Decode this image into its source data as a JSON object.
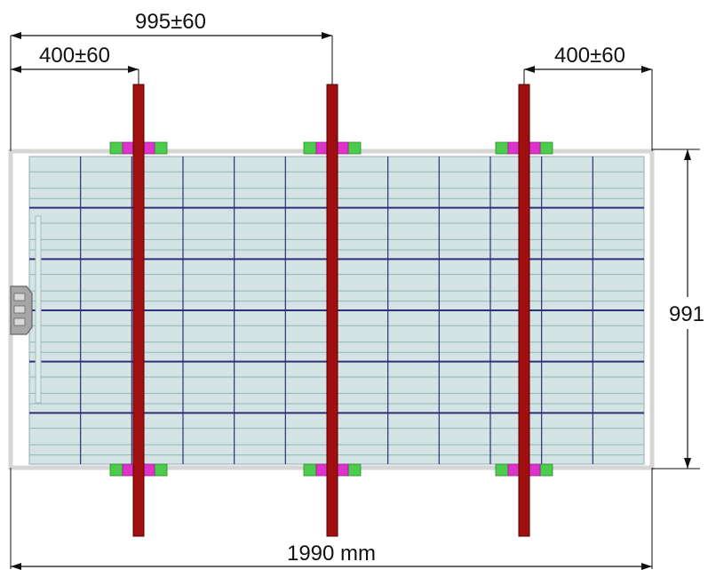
{
  "dimensions": {
    "top_span": "995±60",
    "left_offset": "400±60",
    "right_offset": "400±60",
    "height": "991",
    "total_length": "1990 mm"
  },
  "panel": {
    "columns": 12,
    "rows": 6,
    "frame_color": "#d6d6d6",
    "cell_color": "#d4e3e3",
    "grid_line_color": "#2e2e7a",
    "cell_line_color": "#8fb7b7"
  },
  "rails": {
    "count": 3,
    "color": "#a01010",
    "edge_color": "#5a0000"
  },
  "clamps": {
    "per_rail": 2,
    "pad_color": "#4ccc4c",
    "clip_color": "#dd33cc"
  },
  "junction_box": {
    "color": "#9a9a9a"
  }
}
